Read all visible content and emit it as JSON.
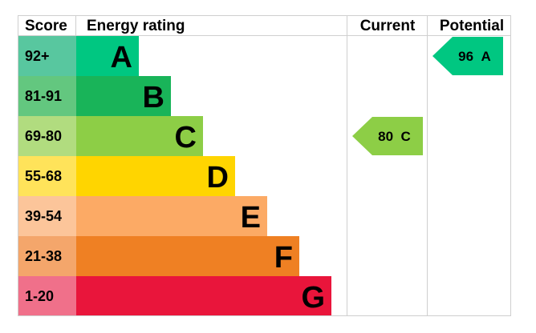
{
  "header": {
    "score": "Score",
    "energy_rating": "Energy rating",
    "current": "Current",
    "potential": "Potential"
  },
  "bands": [
    {
      "score": "92+",
      "letter": "A",
      "color": "#00c781",
      "score_bg": "#58c79f"
    },
    {
      "score": "81-91",
      "letter": "B",
      "color": "#19b459",
      "score_bg": "#63c77f"
    },
    {
      "score": "69-80",
      "letter": "C",
      "color": "#8dce46",
      "score_bg": "#b1dc7f"
    },
    {
      "score": "55-68",
      "letter": "D",
      "color": "#ffd500",
      "score_bg": "#ffe35a"
    },
    {
      "score": "39-54",
      "letter": "E",
      "color": "#fcaa65",
      "score_bg": "#fcc59a"
    },
    {
      "score": "21-38",
      "letter": "F",
      "color": "#ef8023",
      "score_bg": "#f4a66b"
    },
    {
      "score": "1-20",
      "letter": "G",
      "color": "#e9153b",
      "score_bg": "#f0708a"
    }
  ],
  "chart_data": {
    "type": "bar",
    "title": "",
    "categories": [
      "A",
      "B",
      "C",
      "D",
      "E",
      "F",
      "G"
    ],
    "score_ranges": [
      "92+",
      "81-91",
      "69-80",
      "55-68",
      "39-54",
      "21-38",
      "1-20"
    ],
    "current": {
      "value": 80,
      "band": "C",
      "label": "80 C",
      "color": "#8dce46"
    },
    "potential": {
      "value": 96,
      "band": "A",
      "label": "96 A",
      "color": "#00c781"
    }
  }
}
